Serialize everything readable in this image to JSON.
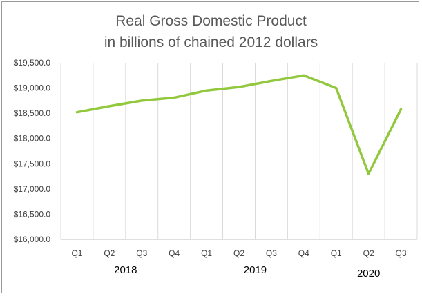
{
  "chart_data": {
    "type": "line",
    "title": [
      "Real Gross Domestic Product",
      "in billions of chained 2012 dollars"
    ],
    "xlabel": "",
    "ylabel": "",
    "categories": [
      "Q1",
      "Q2",
      "Q3",
      "Q4",
      "Q1",
      "Q2",
      "Q3",
      "Q4",
      "Q1",
      "Q2",
      "Q3"
    ],
    "year_labels": [
      {
        "label": "2018",
        "start": 0,
        "end": 3
      },
      {
        "label": "2019",
        "start": 4,
        "end": 7
      },
      {
        "label": "2020",
        "start": 8,
        "end": 10
      }
    ],
    "series": [
      {
        "values": [
          18520,
          18640,
          18750,
          18810,
          18950,
          19020,
          19140,
          19250,
          19000,
          17300,
          18580
        ]
      }
    ],
    "ylim": [
      16000,
      19500
    ],
    "y_ticks": [
      16000,
      16500,
      17000,
      17500,
      18000,
      18500,
      19000,
      19500
    ],
    "y_tick_labels": [
      "$16,000.0",
      "$16,500.0",
      "$17,000.0",
      "$17,500.0",
      "$18,000.0",
      "$18,500.0",
      "$19,000.0",
      "$19,500.0"
    ],
    "grid": "vertical",
    "legend": "none",
    "colors": {
      "line": "#92c83e",
      "grid": "#d9d9d9",
      "axis": "#bfbfbf"
    }
  }
}
